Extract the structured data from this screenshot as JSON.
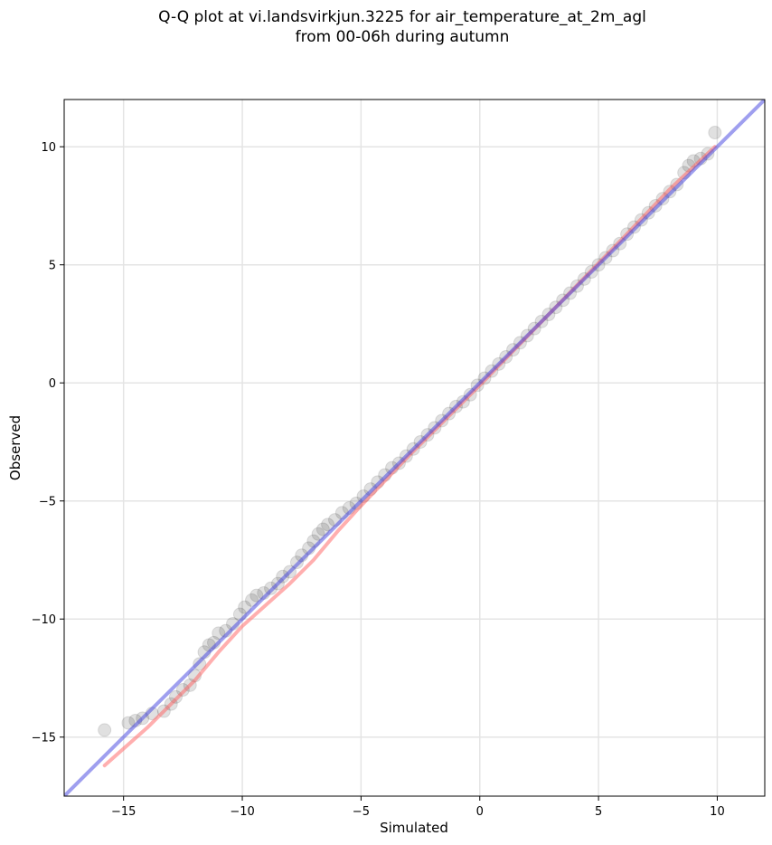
{
  "title": {
    "line1": "Q-Q plot at vi.landsvirkjun.3225 for air_temperature_at_2m_agl",
    "line2": "from 00-06h during autumn"
  },
  "chart_data": {
    "type": "scatter",
    "title": "Q-Q plot at vi.landsvirkjun.3225 for air_temperature_at_2m_agl from 00-06h during autumn",
    "xlabel": "Simulated",
    "ylabel": "Observed",
    "xlim": [
      -17.5,
      12
    ],
    "ylim": [
      -17.5,
      12
    ],
    "xticks": [
      -15,
      -10,
      -5,
      0,
      5,
      10
    ],
    "yticks": [
      -15,
      -10,
      -5,
      0,
      5,
      10
    ],
    "xtick_labels": [
      "−15",
      "−10",
      "−5",
      "0",
      "5",
      "10"
    ],
    "ytick_labels": [
      "−15",
      "−10",
      "−5",
      "0",
      "5",
      "10"
    ],
    "grid": true,
    "series": [
      {
        "kind": "scatter",
        "color": "#000000",
        "alpha": 0.12,
        "x": [
          -15.8,
          -14.8,
          -14.5,
          -14.2,
          -13.8,
          -13.3,
          -13.0,
          -12.8,
          -12.5,
          -12.2,
          -12.0,
          -11.8,
          -11.6,
          -11.4,
          -11.2,
          -11.0,
          -10.7,
          -10.4,
          -10.1,
          -9.9,
          -9.6,
          -9.4,
          -9.1,
          -8.8,
          -8.5,
          -8.3,
          -8.0,
          -7.7,
          -7.5,
          -7.2,
          -7.0,
          -6.8,
          -6.6,
          -6.4,
          -6.1,
          -5.8,
          -5.5,
          -5.2,
          -4.9,
          -4.6,
          -4.3,
          -4.0,
          -3.7,
          -3.4,
          -3.1,
          -2.8,
          -2.5,
          -2.2,
          -1.9,
          -1.6,
          -1.3,
          -1.0,
          -0.7,
          -0.4,
          -0.1,
          0.2,
          0.5,
          0.8,
          1.1,
          1.4,
          1.7,
          2.0,
          2.3,
          2.6,
          2.9,
          3.2,
          3.5,
          3.8,
          4.1,
          4.4,
          4.7,
          5.0,
          5.3,
          5.6,
          5.9,
          6.2,
          6.5,
          6.8,
          7.1,
          7.4,
          7.7,
          8.0,
          8.3,
          8.6,
          8.8,
          9.0,
          9.3,
          9.6,
          9.9
        ],
        "y": [
          -14.7,
          -14.4,
          -14.3,
          -14.2,
          -14.0,
          -13.9,
          -13.6,
          -13.3,
          -13.0,
          -12.8,
          -12.4,
          -11.9,
          -11.4,
          -11.1,
          -11.0,
          -10.6,
          -10.5,
          -10.2,
          -9.8,
          -9.5,
          -9.2,
          -9.0,
          -8.9,
          -8.7,
          -8.5,
          -8.2,
          -8.0,
          -7.6,
          -7.3,
          -7.0,
          -6.7,
          -6.4,
          -6.2,
          -6.0,
          -5.8,
          -5.5,
          -5.3,
          -5.1,
          -4.8,
          -4.5,
          -4.2,
          -3.9,
          -3.6,
          -3.4,
          -3.1,
          -2.8,
          -2.5,
          -2.2,
          -1.9,
          -1.6,
          -1.3,
          -1.0,
          -0.8,
          -0.5,
          -0.1,
          0.2,
          0.5,
          0.8,
          1.1,
          1.4,
          1.7,
          2.0,
          2.3,
          2.6,
          2.9,
          3.2,
          3.5,
          3.8,
          4.1,
          4.4,
          4.7,
          5.0,
          5.3,
          5.6,
          5.9,
          6.3,
          6.6,
          6.9,
          7.2,
          7.5,
          7.8,
          8.1,
          8.4,
          8.9,
          9.2,
          9.4,
          9.5,
          9.7,
          10.6
        ]
      },
      {
        "kind": "line",
        "color": "#ff6060",
        "x": [
          -15.8,
          -14.0,
          -12.0,
          -11.0,
          -10.0,
          -8.0,
          -7.0,
          -6.0,
          -5.0,
          -3.0,
          0.0,
          3.0,
          6.0,
          8.0,
          9.9
        ],
        "y": [
          -16.2,
          -14.6,
          -12.6,
          -11.4,
          -10.3,
          -8.5,
          -7.5,
          -6.3,
          -5.2,
          -3.1,
          -0.1,
          3.0,
          6.1,
          8.2,
          10.0
        ]
      },
      {
        "kind": "line",
        "color": "#4040e0",
        "x": [
          -17.5,
          12
        ],
        "y": [
          -17.5,
          12
        ]
      }
    ]
  }
}
